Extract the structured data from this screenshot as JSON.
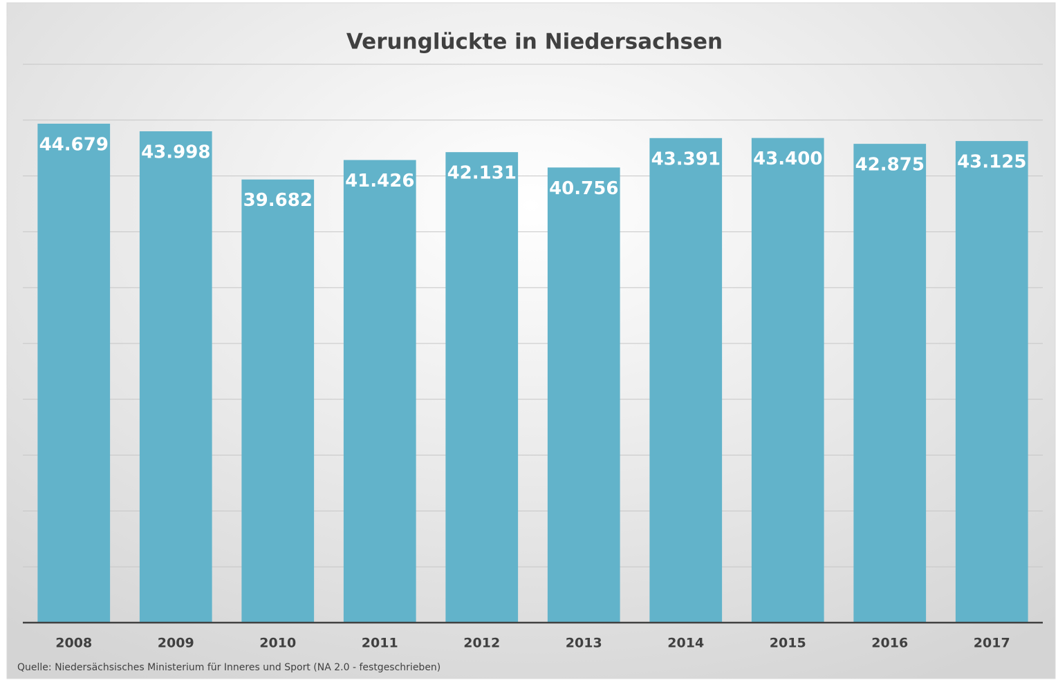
{
  "chart_data": {
    "type": "bar",
    "title": "Verunglückte in Niedersachsen",
    "categories": [
      "2008",
      "2009",
      "2010",
      "2011",
      "2012",
      "2013",
      "2014",
      "2015",
      "2016",
      "2017"
    ],
    "values": [
      44679,
      43998,
      39682,
      41426,
      42131,
      40756,
      43391,
      43400,
      42875,
      43125
    ],
    "value_labels": [
      "44.679",
      "43.998",
      "39.682",
      "41.426",
      "42.131",
      "40.756",
      "43.391",
      "43.400",
      "42.875",
      "43.125"
    ],
    "color": "#62b3ca",
    "ylim": [
      0,
      50000
    ],
    "yticks": [
      0,
      5000,
      10000,
      15000,
      20000,
      25000,
      30000,
      35000,
      40000,
      45000,
      50000
    ],
    "grid": true,
    "source": "Quelle: Niedersächsisches Ministerium für Inneres und Sport (NA 2.0 - festgeschrieben)"
  }
}
